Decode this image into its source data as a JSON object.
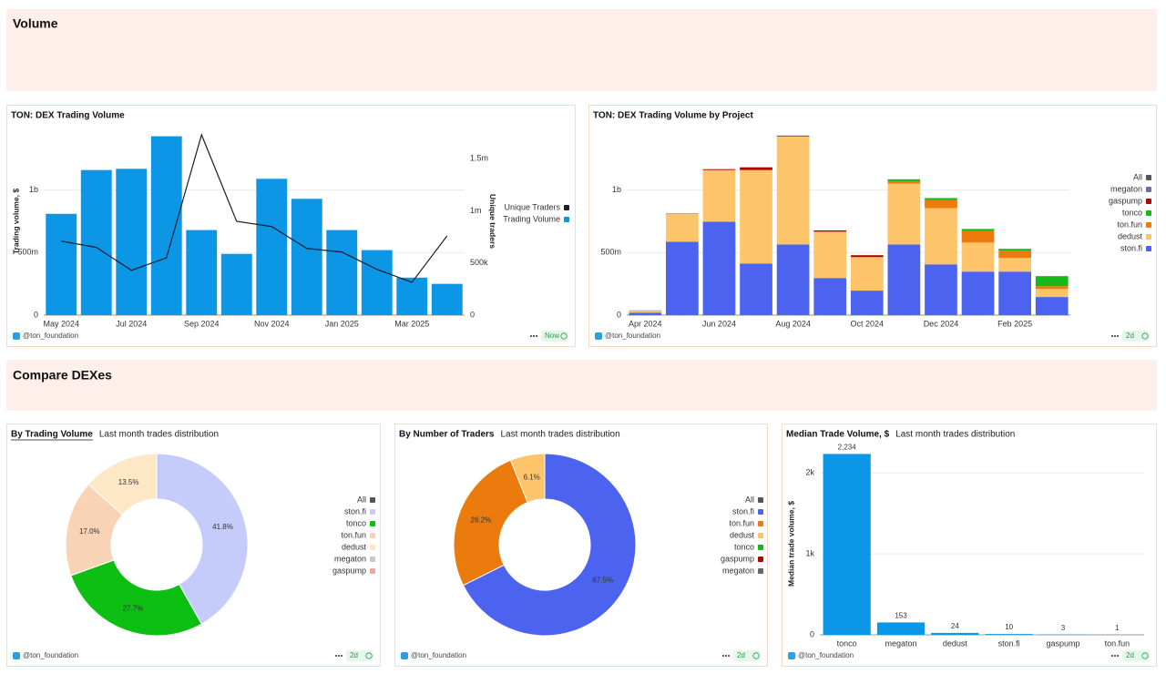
{
  "sections": [
    {
      "title": "Volume"
    },
    {
      "title": "Compare DEXes"
    }
  ],
  "chart_data": [
    {
      "type": "bar",
      "title": "TON: DEX Trading Volume",
      "categories": [
        "May 2024",
        null,
        "Jul 2024",
        null,
        "Sep 2024",
        null,
        "Nov 2024",
        null,
        "Jan 2025",
        null,
        "Mar 2025",
        null
      ],
      "series": [
        {
          "name": "Unique Traders",
          "type": "line",
          "axis": "y2",
          "color": "#1d1d2b",
          "values": [
            710000,
            650000,
            430000,
            550000,
            1730000,
            900000,
            850000,
            640000,
            605000,
            440000,
            315000,
            760000
          ]
        },
        {
          "name": "Trading Volume",
          "type": "bar",
          "color": "#0c96e6",
          "values": [
            810000000,
            1160000000,
            1170000000,
            1430000000,
            680000000,
            490000000,
            1090000000,
            930000000,
            680000000,
            520000000,
            300000000,
            250000000
          ]
        }
      ],
      "ylabel": "Trading volume, $",
      "y2label": "Unique traders",
      "ylim": [
        0,
        1500000000
      ],
      "yticks": [
        0,
        {
          "value": 500000000,
          "label": "500m"
        },
        {
          "value": 1000000000,
          "label": "1b"
        }
      ],
      "y2lim": [
        0,
        1800000
      ],
      "y2ticks": [
        0,
        {
          "value": 500000,
          "label": "500k"
        },
        {
          "value": 1000000,
          "label": "1m"
        },
        {
          "value": 1500000,
          "label": "1.5m"
        }
      ],
      "grid": true,
      "legend": "right",
      "footer": "@ton_foundation",
      "badge": "Now"
    },
    {
      "type": "stacked_bar",
      "title": "TON: DEX Trading Volume by Project",
      "categories": [
        "Apr 2024",
        null,
        "Jun 2024",
        null,
        "Aug 2024",
        null,
        "Oct 2024",
        null,
        "Dec 2024",
        null,
        "Feb 2025",
        null
      ],
      "series": [
        {
          "name": "ston.fi",
          "color": "#4c63f0",
          "values": [
            20000000,
            587000000,
            747000000,
            413000000,
            565000000,
            297000000,
            196000000,
            565000000,
            406000000,
            348000000,
            348000000,
            145000000
          ]
        },
        {
          "name": "dedust",
          "color": "#fdc46a",
          "values": [
            15000000,
            225000000,
            413000000,
            747000000,
            863000000,
            370000000,
            268000000,
            486000000,
            450000000,
            232000000,
            109000000,
            65000000
          ]
        },
        {
          "name": "ton.fun",
          "color": "#ea7b0c",
          "values": [
            0,
            0,
            0,
            0,
            0,
            0,
            0,
            20000000,
            65000000,
            94000000,
            58000000,
            22000000
          ]
        },
        {
          "name": "tonco",
          "color": "#19b819",
          "values": [
            0,
            0,
            0,
            0,
            0,
            0,
            0,
            15000000,
            15000000,
            15000000,
            15000000,
            80000000
          ]
        },
        {
          "name": "gaspump",
          "color": "#b30000",
          "values": [
            0,
            0,
            5000000,
            20000000,
            5000000,
            10000000,
            15000000,
            0,
            0,
            0,
            0,
            0
          ]
        },
        {
          "name": "megaton",
          "color": "#6d6da8",
          "values": [
            3000000,
            3000000,
            3000000,
            3000000,
            3000000,
            0,
            0,
            0,
            0,
            0,
            0,
            0
          ]
        }
      ],
      "legend_all": "All",
      "ylim": [
        0,
        1500000000
      ],
      "yticks": [
        0,
        {
          "value": 500000000,
          "label": "500m"
        },
        {
          "value": 1000000000,
          "label": "1b"
        }
      ],
      "grid": true,
      "legend": "right",
      "footer": "@ton_foundation",
      "badge": "2d"
    },
    {
      "type": "pie",
      "donut": true,
      "title": "By Trading Volume",
      "subtitle": "Last month trades distribution",
      "categories": [
        "ston.fi",
        "tonco",
        "ton.fun",
        "dedust",
        "megaton",
        "gaspump"
      ],
      "values": [
        41.8,
        27.7,
        17.0,
        13.5,
        0,
        0
      ],
      "value_labels": [
        "41.8%",
        "27.7%",
        "17.0%",
        "13.5%",
        null,
        null
      ],
      "colors": [
        "#c5cbfb",
        "#0dbf13",
        "#f9d3b5",
        "#fde7c5",
        "#c9c9c9",
        "#e8a8a8"
      ],
      "legend_all": "All",
      "legend": "right",
      "footer": "@ton_foundation",
      "badge": "2d"
    },
    {
      "type": "pie",
      "donut": true,
      "title": "By Number of Traders",
      "subtitle": "Last month trades distribution",
      "categories": [
        "ston.fi",
        "ton.fun",
        "dedust",
        "tonco",
        "gaspump",
        "megaton"
      ],
      "values": [
        67.5,
        26.2,
        6.1,
        0,
        0,
        0
      ],
      "value_labels": [
        "67.5%",
        "26.2%",
        "6.1%",
        null,
        null,
        null
      ],
      "colors": [
        "#4c63f0",
        "#ea7b0c",
        "#fdc46a",
        "#19b819",
        "#b30000",
        "#666666"
      ],
      "legend_all": "All",
      "legend": "right",
      "footer": "@ton_foundation",
      "badge": "2d"
    },
    {
      "type": "bar",
      "title": "Median Trade Volume, $",
      "subtitle": "Last month trades distribution",
      "categories": [
        "tonco",
        "megaton",
        "dedust",
        "ston.fi",
        "gaspump",
        "ton.fun"
      ],
      "series": [
        {
          "type": "bar",
          "color": "#0c96e6",
          "values": [
            2234,
            153,
            24,
            10,
            3,
            1
          ],
          "value_labels": [
            "2,234",
            "153",
            "24",
            "10",
            "3",
            "1"
          ]
        }
      ],
      "ylabel": "Median trade volume, $",
      "ylim": [
        0,
        2250
      ],
      "yticks": [
        0,
        {
          "value": 1000,
          "label": "1k"
        },
        {
          "value": 2000,
          "label": "2k"
        }
      ],
      "grid": true,
      "footer": "@ton_foundation",
      "badge": "2d"
    }
  ]
}
